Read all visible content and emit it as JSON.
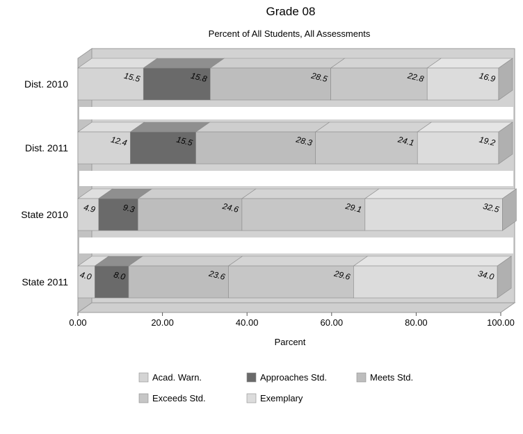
{
  "chart_data": {
    "type": "bar",
    "orientation": "horizontal",
    "stacked": true,
    "percent_stacked": true,
    "title": "Grade 08",
    "subtitle": "Percent of All Students, All Assessments",
    "xlabel": "Parcent",
    "ylabel": "",
    "xlim": [
      0,
      100
    ],
    "x_ticks": [
      "0.00",
      "20.00",
      "40.00",
      "60.00",
      "80.00",
      "100.00"
    ],
    "grid": false,
    "legend_position": "bottom",
    "categories": [
      "Dist. 2010",
      "Dist. 2011",
      "State 2010",
      "State 2011"
    ],
    "series": [
      {
        "name": "Acad. Warn.",
        "color": "#d4d4d4",
        "values": [
          15.5,
          12.4,
          4.9,
          4.0
        ]
      },
      {
        "name": "Approaches Std.",
        "color": "#6a6a6a",
        "values": [
          15.8,
          15.5,
          9.3,
          8.0
        ]
      },
      {
        "name": "Meets Std.",
        "color": "#bdbdbd",
        "values": [
          28.5,
          28.3,
          24.6,
          23.6
        ]
      },
      {
        "name": "Exceeds Std.",
        "color": "#c6c6c6",
        "values": [
          22.8,
          24.1,
          29.1,
          29.6
        ]
      },
      {
        "name": "Exemplary",
        "color": "#dcdcdc",
        "values": [
          16.9,
          19.2,
          32.5,
          34.0
        ]
      }
    ]
  }
}
